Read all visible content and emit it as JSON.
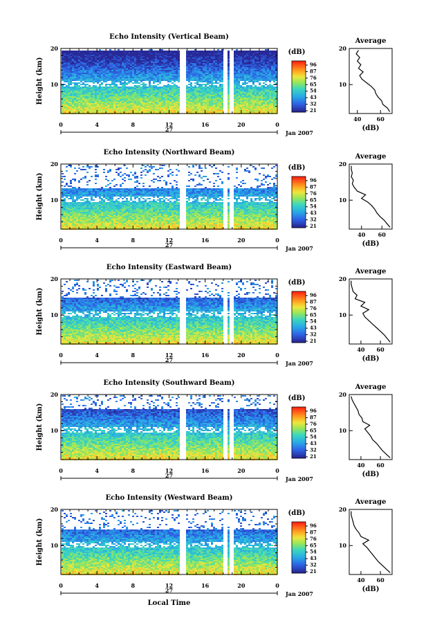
{
  "figure": {
    "xlabel_bottom": "Local Time",
    "date_label": "Jan 2007",
    "day_label": "27",
    "xticks": [
      "0",
      "4",
      "8",
      "12",
      "16",
      "20",
      "0"
    ],
    "colorbar_unit": "(dB)",
    "colorbar_ticks": [
      "96",
      "87",
      "76",
      "65",
      "54",
      "43",
      "32",
      "21"
    ],
    "colorbar_colors": [
      "#ff2000",
      "#ff8a00",
      "#ffd21a",
      "#c0f040",
      "#40e0a0",
      "#22b8e0",
      "#2a78e8",
      "#2b2ea8"
    ]
  },
  "chart_data": [
    {
      "type": "heatmap",
      "title": "Echo Intensity (Vertical Beam)",
      "ylabel": "Height (km)",
      "yticks": [
        "20",
        "10"
      ],
      "ylim": [
        2,
        20
      ],
      "xlim": [
        0,
        24
      ],
      "color_range_db": [
        21,
        96
      ],
      "gaps_hours": [
        [
          13.0,
          13.7
        ],
        [
          17.9,
          18.3
        ],
        [
          18.7,
          19.0
        ]
      ],
      "top_signal_km": 19.5,
      "profile": {
        "title": "Average",
        "xlabel": "(dB)",
        "xticks": [
          "40",
          "60"
        ],
        "xlim": [
          33,
          70
        ],
        "ylim": [
          2,
          20
        ],
        "heights_km": [
          2.5,
          3.5,
          4.5,
          5.5,
          6.5,
          7.5,
          8.5,
          9.5,
          10.5,
          11.5,
          12.5,
          13.5,
          14.5,
          15.5,
          16.5,
          17.5,
          18.5,
          19.5
        ],
        "values_db": [
          68,
          66,
          62,
          61,
          58,
          56,
          55,
          52,
          48,
          44,
          42,
          45,
          41,
          43,
          40,
          42,
          39,
          41
        ]
      }
    },
    {
      "type": "heatmap",
      "title": "Echo Intensity (Northward Beam)",
      "ylabel": "Height (km)",
      "yticks": [
        "20",
        "10"
      ],
      "ylim": [
        2,
        20
      ],
      "xlim": [
        0,
        24
      ],
      "color_range_db": [
        21,
        96
      ],
      "gaps_hours": [
        [
          13.0,
          13.7
        ],
        [
          17.9,
          18.3
        ],
        [
          18.7,
          19.0
        ]
      ],
      "top_signal_km": 13.5,
      "profile": {
        "title": "Average",
        "xlabel": "(dB)",
        "xticks": [
          "40",
          "60"
        ],
        "xlim": [
          28,
          70
        ],
        "ylim": [
          2,
          20
        ],
        "heights_km": [
          2.5,
          3.5,
          4.5,
          5.5,
          6.5,
          7.5,
          8.5,
          9.5,
          10.5,
          11.5,
          12.5,
          13.5,
          14.5,
          15.5,
          16.5,
          17.5,
          18.5,
          19.5
        ],
        "values_db": [
          68,
          65,
          62,
          58,
          55,
          53,
          50,
          46,
          40,
          44,
          36,
          33,
          31,
          32,
          30,
          31,
          30,
          30
        ]
      }
    },
    {
      "type": "heatmap",
      "title": "Echo Intensity (Eastward Beam)",
      "ylabel": "Height (km)",
      "yticks": [
        "20",
        "10"
      ],
      "ylim": [
        2,
        20
      ],
      "xlim": [
        0,
        24
      ],
      "color_range_db": [
        21,
        96
      ],
      "gaps_hours": [
        [
          13.0,
          13.7
        ],
        [
          17.9,
          18.3
        ],
        [
          18.7,
          19.0
        ]
      ],
      "top_signal_km": 15,
      "profile": {
        "title": "Average",
        "xlabel": "(dB)",
        "xticks": [
          "40",
          "60"
        ],
        "xlim": [
          28,
          72
        ],
        "ylim": [
          2,
          20
        ],
        "heights_km": [
          2.5,
          3.5,
          4.5,
          5.5,
          6.5,
          7.5,
          8.5,
          9.5,
          10.5,
          11.5,
          12.5,
          13.5,
          14.5,
          15.5,
          16.5,
          17.5,
          18.5,
          19.5
        ],
        "values_db": [
          70,
          67,
          64,
          60,
          56,
          52,
          48,
          44,
          42,
          48,
          40,
          44,
          34,
          36,
          32,
          31,
          30,
          30
        ]
      }
    },
    {
      "type": "heatmap",
      "title": "Echo Intensity (Southward Beam)",
      "ylabel": "Height (km)",
      "yticks": [
        "20",
        "10"
      ],
      "ylim": [
        2,
        20
      ],
      "xlim": [
        0,
        24
      ],
      "color_range_db": [
        21,
        96
      ],
      "gaps_hours": [
        [
          13.0,
          13.7
        ],
        [
          17.9,
          18.3
        ],
        [
          18.7,
          19.0
        ]
      ],
      "top_signal_km": 16,
      "profile": {
        "title": "Average",
        "xlabel": "(dB)",
        "xticks": [
          "40",
          "60"
        ],
        "xlim": [
          28,
          72
        ],
        "ylim": [
          2,
          20
        ],
        "heights_km": [
          2.5,
          3.5,
          4.5,
          5.5,
          6.5,
          7.5,
          8.5,
          9.5,
          10.5,
          11.5,
          12.5,
          13.5,
          14.5,
          15.5,
          16.5,
          17.5,
          18.5,
          19.5
        ],
        "values_db": [
          70,
          66,
          62,
          59,
          56,
          52,
          50,
          47,
          44,
          49,
          42,
          41,
          38,
          37,
          35,
          33,
          31,
          30
        ]
      }
    },
    {
      "type": "heatmap",
      "title": "Echo Intensity (Westward Beam)",
      "ylabel": "Height (km)",
      "yticks": [
        "20",
        "10"
      ],
      "ylim": [
        2,
        20
      ],
      "xlim": [
        0,
        24
      ],
      "color_range_db": [
        21,
        96
      ],
      "gaps_hours": [
        [
          13.0,
          13.7
        ],
        [
          17.9,
          18.3
        ],
        [
          18.7,
          19.0
        ]
      ],
      "top_signal_km": 14.5,
      "profile": {
        "title": "Average",
        "xlabel": "(dB)",
        "xticks": [
          "40",
          "60"
        ],
        "xlim": [
          28,
          72
        ],
        "ylim": [
          2,
          20
        ],
        "heights_km": [
          2.5,
          3.5,
          4.5,
          5.5,
          6.5,
          7.5,
          8.5,
          9.5,
          10.5,
          11.5,
          12.5,
          13.5,
          14.5,
          15.5,
          16.5,
          17.5,
          18.5,
          19.5
        ],
        "values_db": [
          70,
          66,
          62,
          58,
          55,
          52,
          49,
          46,
          42,
          48,
          40,
          38,
          35,
          33,
          32,
          31,
          30,
          30
        ]
      }
    }
  ]
}
